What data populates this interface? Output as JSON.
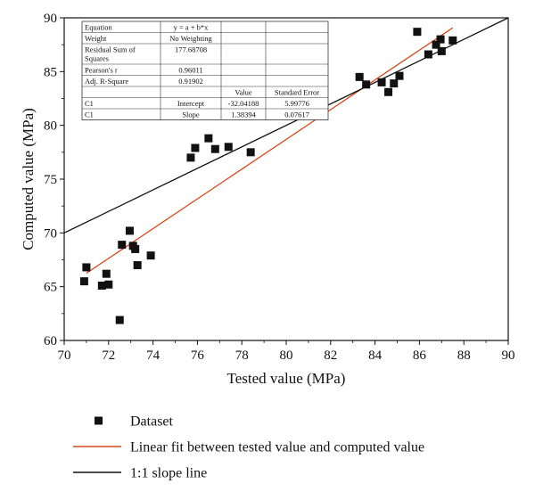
{
  "chart_data": {
    "type": "scatter",
    "xlabel": "Tested value (MPa)",
    "ylabel": "Computed value (MPa)",
    "xlim": [
      70,
      90
    ],
    "ylim": [
      60,
      90
    ],
    "x_ticks": [
      70,
      72,
      74,
      76,
      78,
      80,
      82,
      84,
      86,
      88,
      90
    ],
    "y_ticks": [
      60,
      65,
      70,
      75,
      80,
      85,
      90
    ],
    "grid": false,
    "series": [
      {
        "name": "Dataset",
        "kind": "scatter",
        "color": "#111111",
        "points": [
          [
            70.9,
            65.5
          ],
          [
            71.0,
            66.8
          ],
          [
            71.7,
            65.1
          ],
          [
            71.9,
            66.2
          ],
          [
            72.0,
            65.2
          ],
          [
            72.5,
            61.9
          ],
          [
            72.6,
            68.9
          ],
          [
            72.95,
            70.2
          ],
          [
            73.1,
            68.8
          ],
          [
            73.2,
            68.5
          ],
          [
            73.3,
            67.0
          ],
          [
            73.9,
            67.9
          ],
          [
            75.7,
            77.0
          ],
          [
            75.9,
            77.9
          ],
          [
            76.5,
            78.8
          ],
          [
            76.8,
            77.8
          ],
          [
            77.4,
            78.0
          ],
          [
            78.4,
            77.5
          ],
          [
            83.3,
            84.5
          ],
          [
            83.6,
            83.8
          ],
          [
            84.3,
            84.0
          ],
          [
            84.6,
            83.1
          ],
          [
            84.85,
            83.9
          ],
          [
            85.1,
            84.6
          ],
          [
            85.9,
            88.7
          ],
          [
            86.4,
            86.6
          ],
          [
            86.75,
            87.5
          ],
          [
            86.95,
            88.0
          ],
          [
            87.0,
            86.9
          ],
          [
            87.5,
            87.9
          ]
        ]
      },
      {
        "name": "Linear fit between tested value and computed value",
        "kind": "line",
        "color": "#d94a1e",
        "points": [
          [
            71.0,
            66.25
          ],
          [
            87.5,
            89.07
          ]
        ]
      },
      {
        "name": "1:1 slope line",
        "kind": "line",
        "color": "#111111",
        "points": [
          [
            70.0,
            70.0
          ],
          [
            90.0,
            90.0
          ]
        ]
      }
    ],
    "legend": {
      "position": "bottom",
      "entries": [
        {
          "label": "Dataset",
          "symbol": "square"
        },
        {
          "label": "Linear fit between tested value and computed value",
          "symbol": "line",
          "color": "#d94a1e"
        },
        {
          "label": "1:1 slope line",
          "symbol": "line",
          "color": "#111111"
        }
      ]
    },
    "stats_table": {
      "position": "top-left",
      "rows": [
        [
          "Equation",
          "y = a + b*x",
          "",
          ""
        ],
        [
          "Weight",
          "No Weighting",
          "",
          ""
        ],
        [
          "Residual Sum of\nSquares",
          "177.68708",
          "",
          ""
        ],
        [
          "Pearson's r",
          "0.96011",
          "",
          ""
        ],
        [
          "Adj. R-Square",
          "0.91902",
          "",
          ""
        ],
        [
          "",
          "",
          "Value",
          "Standard Error"
        ],
        [
          "C1",
          "Intercept",
          "-32.04188",
          "5.99776"
        ],
        [
          "C1",
          "Slope",
          "1.38394",
          "0.07617"
        ]
      ]
    }
  }
}
